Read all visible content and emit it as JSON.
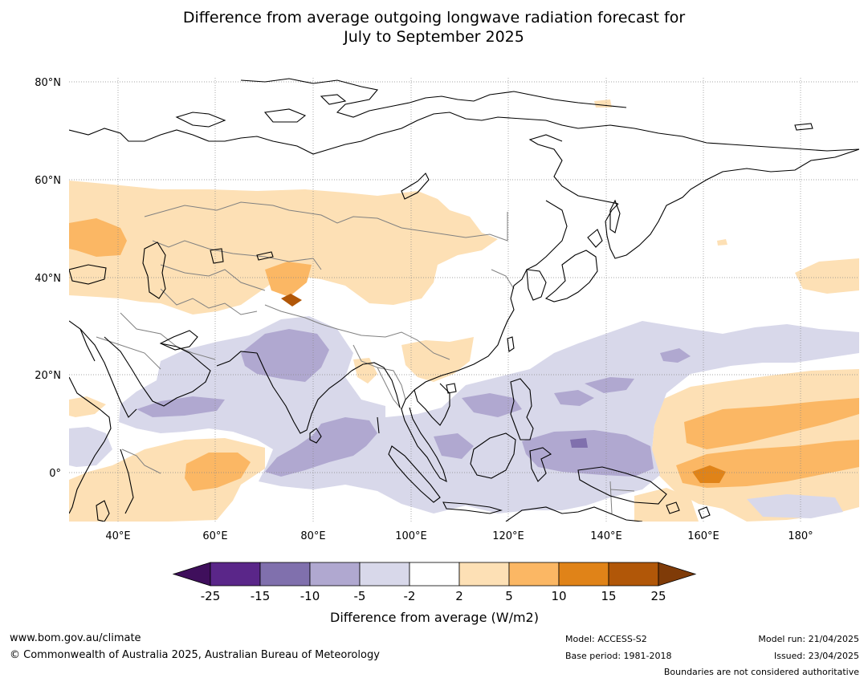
{
  "title": {
    "line1": "Difference from average outgoing longwave radiation forecast for",
    "line2": "July to September 2025"
  },
  "map": {
    "lat_labels": [
      "80°N",
      "60°N",
      "40°N",
      "20°N",
      "0°"
    ],
    "lon_labels": [
      "40°E",
      "60°E",
      "80°E",
      "100°E",
      "120°E",
      "140°E",
      "160°E",
      "180°"
    ]
  },
  "legend": {
    "ticks": [
      "-25",
      "-15",
      "-10",
      "-5",
      "-2",
      "2",
      "5",
      "10",
      "15",
      "25"
    ],
    "colors": [
      "#3f0f5c",
      "#5a2689",
      "#8070ad",
      "#b0a8d0",
      "#d8d8ea",
      "#ffffff",
      "#fde0b5",
      "#fbb764",
      "#e08318",
      "#b15708",
      "#7f3b08"
    ],
    "label": "Difference from average (W/m2)"
  },
  "footer": {
    "url": "www.bom.gov.au/climate",
    "copyright": "© Commonwealth of Australia 2025, Australian Bureau of Meteorology",
    "model": "Model: ACCESS-S2",
    "base_period": "Base period: 1981-2018",
    "model_run": "Model run: 21/04/2025",
    "issued": "Issued: 23/04/2025",
    "disclaimer": "Boundaries are not considered authoritative"
  }
}
